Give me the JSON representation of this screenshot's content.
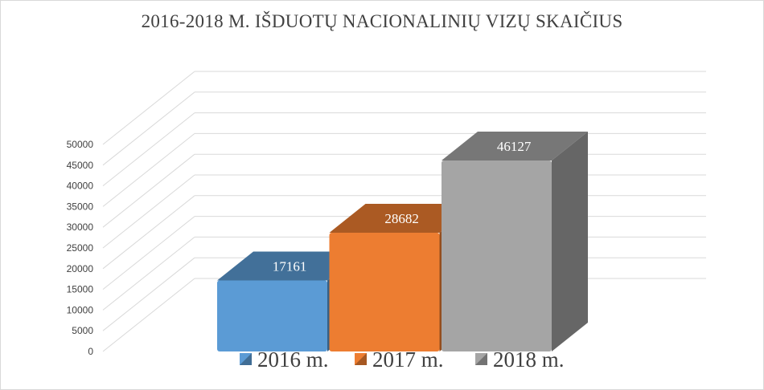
{
  "chart_data": {
    "type": "bar",
    "title": "2016-2018 M. IŠDUOTŲ NACIONALINIŲ  VIZŲ SKAIČIUS",
    "categories": [
      "2016 m.",
      "2017 m.",
      "2018 m."
    ],
    "values": [
      17161,
      28682,
      46127
    ],
    "data_labels": [
      "17161",
      "28682",
      "46127"
    ],
    "y_ticks": [
      "0",
      "5000",
      "10000",
      "15000",
      "20000",
      "25000",
      "30000",
      "35000",
      "40000",
      "45000",
      "50000"
    ],
    "ylim": [
      0,
      50000
    ],
    "grid": true,
    "legend": "bottom",
    "style": "3d-column",
    "colors": [
      "#5b9bd5",
      "#ed7d31",
      "#a5a5a5"
    ]
  }
}
